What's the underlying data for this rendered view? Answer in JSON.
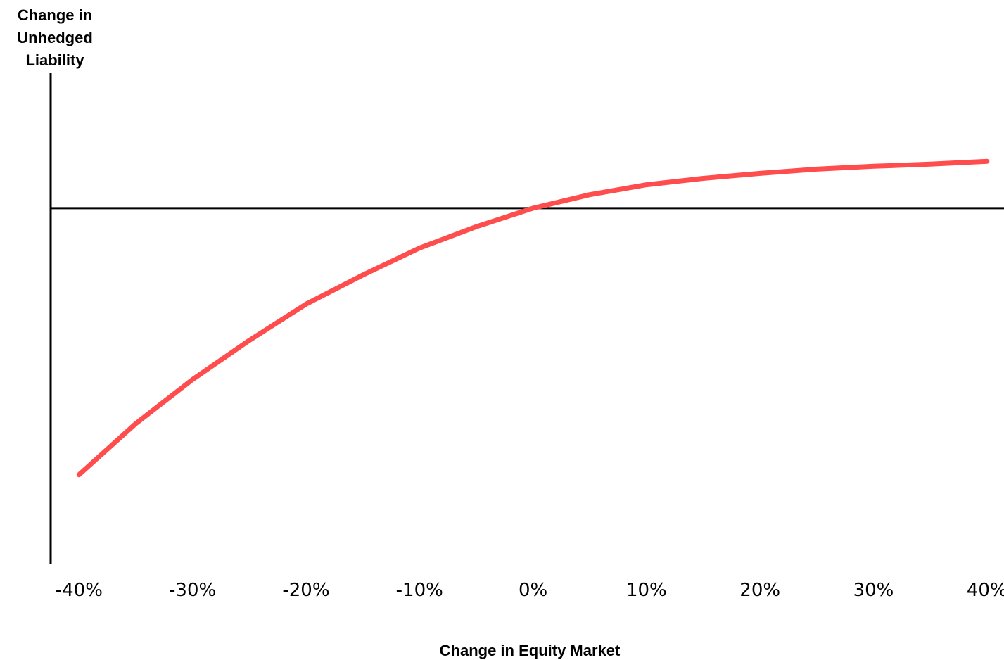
{
  "chart_data": {
    "type": "line",
    "title": "",
    "xlabel": "Change in Equity Market",
    "ylabel_lines": [
      "Change in",
      "Unhedged",
      "Liability"
    ],
    "x_tick_labels": [
      "-40%",
      "-30%",
      "-20%",
      "-10%",
      "0%",
      "10%",
      "20%",
      "30%",
      "40%"
    ],
    "x_ticks": [
      -40,
      -30,
      -20,
      -10,
      0,
      10,
      20,
      30,
      40
    ],
    "xlim": [
      -42.5,
      41.5
    ],
    "ylim": [
      -50,
      19
    ],
    "grid": false,
    "legend": "none",
    "series": [
      {
        "color": "#ff4d4d",
        "x": [
          -40,
          -35,
          -30,
          -25,
          -20,
          -15,
          -10,
          -5,
          0,
          5,
          10,
          15,
          20,
          25,
          30,
          35,
          40
        ],
        "y": [
          -37.5,
          -30.3,
          -24.1,
          -18.6,
          -13.5,
          -9.4,
          -5.6,
          -2.6,
          0,
          1.9,
          3.3,
          4.2,
          4.9,
          5.5,
          5.9,
          6.2,
          6.6
        ]
      }
    ],
    "axis_color": "#000000"
  }
}
